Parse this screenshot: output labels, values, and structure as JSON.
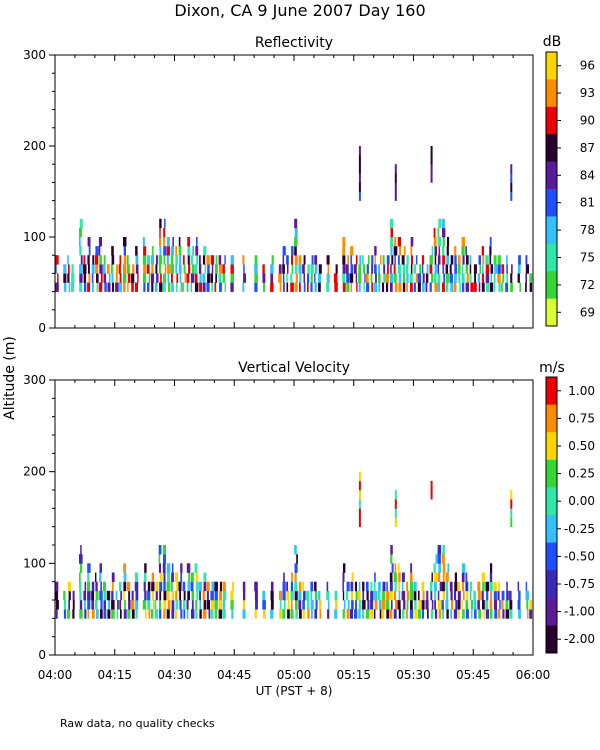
{
  "title": "Dixon, CA   9 June 2007   Day 160",
  "ylabel": "Altitude (m)",
  "xlabel": "UT  (PST + 8)",
  "footnote": "Raw data, no quality checks",
  "x_ticks": [
    "04:00",
    "04:15",
    "04:30",
    "04:45",
    "05:00",
    "05:15",
    "05:30",
    "05:45",
    "06:00"
  ],
  "y_ticks": [
    "0",
    "100",
    "200",
    "300"
  ],
  "chart_data": [
    {
      "type": "heatmap",
      "title": "Reflectivity",
      "unit": "dB",
      "x_range_minutes_after_0400": [
        0,
        120
      ],
      "ylim": [
        0,
        300
      ],
      "colorbar": {
        "labels": [
          "96",
          "93",
          "90",
          "87",
          "84",
          "81",
          "78",
          "75",
          "72",
          "69"
        ],
        "colors": [
          "#ffd400",
          "#ff8c00",
          "#ee0000",
          "#2a0030",
          "#5a1a9a",
          "#1f4fff",
          "#33c0ff",
          "#2fe8a8",
          "#33d633",
          "#d8ff33"
        ]
      },
      "columns": [
        {
          "t": 0,
          "top": 80
        },
        {
          "t": 2,
          "top": 70
        },
        {
          "t": 3,
          "top": 80
        },
        {
          "t": 4,
          "top": 70
        },
        {
          "t": 6,
          "top": 120
        },
        {
          "t": 7,
          "top": 80
        },
        {
          "t": 8,
          "top": 100
        },
        {
          "t": 9,
          "top": 80
        },
        {
          "t": 10,
          "top": 90
        },
        {
          "t": 11,
          "top": 100
        },
        {
          "t": 12,
          "top": 80
        },
        {
          "t": 13,
          "top": 70
        },
        {
          "t": 14,
          "top": 90
        },
        {
          "t": 15,
          "top": 70
        },
        {
          "t": 16,
          "top": 80
        },
        {
          "t": 17,
          "top": 100
        },
        {
          "t": 18,
          "top": 80
        },
        {
          "t": 19,
          "top": 70
        },
        {
          "t": 20,
          "top": 90
        },
        {
          "t": 22,
          "top": 100
        },
        {
          "t": 23,
          "top": 80
        },
        {
          "t": 24,
          "top": 90
        },
        {
          "t": 25,
          "top": 80
        },
        {
          "t": 26,
          "top": 120
        },
        {
          "t": 27,
          "top": 120
        },
        {
          "t": 28,
          "top": 100
        },
        {
          "t": 29,
          "top": 100
        },
        {
          "t": 30,
          "top": 90
        },
        {
          "t": 31,
          "top": 100
        },
        {
          "t": 32,
          "top": 80
        },
        {
          "t": 33,
          "top": 100
        },
        {
          "t": 34,
          "top": 90
        },
        {
          "t": 35,
          "top": 100
        },
        {
          "t": 36,
          "top": 80
        },
        {
          "t": 37,
          "top": 90
        },
        {
          "t": 38,
          "top": 80
        },
        {
          "t": 39,
          "top": 80
        },
        {
          "t": 40,
          "top": 80
        },
        {
          "t": 41,
          "top": 80
        },
        {
          "t": 42,
          "top": 80
        },
        {
          "t": 44,
          "top": 80
        },
        {
          "t": 47,
          "top": 80
        },
        {
          "t": 50,
          "top": 80
        },
        {
          "t": 52,
          "top": 70
        },
        {
          "t": 54,
          "top": 80
        },
        {
          "t": 56,
          "top": 70
        },
        {
          "t": 57,
          "top": 90
        },
        {
          "t": 58,
          "top": 80
        },
        {
          "t": 59,
          "top": 90
        },
        {
          "t": 60,
          "top": 120
        },
        {
          "t": 61,
          "top": 80
        },
        {
          "t": 62,
          "top": 80
        },
        {
          "t": 63,
          "top": 70
        },
        {
          "t": 64,
          "top": 80
        },
        {
          "t": 65,
          "top": 80
        },
        {
          "t": 66,
          "top": 70
        },
        {
          "t": 68,
          "top": 80
        },
        {
          "t": 70,
          "top": 70
        },
        {
          "t": 72,
          "top": 100
        },
        {
          "t": 73,
          "top": 80
        },
        {
          "t": 74,
          "top": 90
        },
        {
          "t": 75,
          "top": 80
        },
        {
          "t": 76,
          "top": 80
        },
        {
          "t": 77,
          "top": 80
        },
        {
          "t": 78,
          "top": 80
        },
        {
          "t": 79,
          "top": 80
        },
        {
          "t": 80,
          "top": 90
        },
        {
          "t": 81,
          "top": 80
        },
        {
          "t": 82,
          "top": 80
        },
        {
          "t": 83,
          "top": 80
        },
        {
          "t": 84,
          "top": 120
        },
        {
          "t": 85,
          "top": 100
        },
        {
          "t": 86,
          "top": 100
        },
        {
          "t": 87,
          "top": 90
        },
        {
          "t": 88,
          "top": 80
        },
        {
          "t": 89,
          "top": 100
        },
        {
          "t": 90,
          "top": 80
        },
        {
          "t": 91,
          "top": 70
        },
        {
          "t": 92,
          "top": 80
        },
        {
          "t": 93,
          "top": 70
        },
        {
          "t": 94,
          "top": 90
        },
        {
          "t": 95,
          "top": 110
        },
        {
          "t": 96,
          "top": 120
        },
        {
          "t": 97,
          "top": 120
        },
        {
          "t": 98,
          "top": 100
        },
        {
          "t": 99,
          "top": 80
        },
        {
          "t": 100,
          "top": 90
        },
        {
          "t": 101,
          "top": 80
        },
        {
          "t": 102,
          "top": 100
        },
        {
          "t": 103,
          "top": 90
        },
        {
          "t": 104,
          "top": 80
        },
        {
          "t": 105,
          "top": 70
        },
        {
          "t": 106,
          "top": 80
        },
        {
          "t": 107,
          "top": 90
        },
        {
          "t": 108,
          "top": 80
        },
        {
          "t": 109,
          "top": 100
        },
        {
          "t": 110,
          "top": 80
        },
        {
          "t": 111,
          "top": 80
        },
        {
          "t": 112,
          "top": 70
        },
        {
          "t": 113,
          "top": 80
        },
        {
          "t": 114,
          "top": 70
        },
        {
          "t": 116,
          "top": 80
        },
        {
          "t": 118,
          "top": 80
        },
        {
          "t": 119,
          "top": 60
        }
      ],
      "elevated_returns": [
        {
          "t": 76,
          "bottom": 140,
          "top": 200
        },
        {
          "t": 85,
          "bottom": 140,
          "top": 180
        },
        {
          "t": 94,
          "bottom": 160,
          "top": 200
        },
        {
          "t": 114,
          "bottom": 140,
          "top": 180
        }
      ]
    },
    {
      "type": "heatmap",
      "title": "Vertical Velocity",
      "unit": "m/s",
      "x_range_minutes_after_0400": [
        0,
        120
      ],
      "ylim": [
        0,
        300
      ],
      "colorbar": {
        "labels": [
          "1.00",
          "0.75",
          "0.50",
          "0.25",
          "0.00",
          "-0.25",
          "-0.50",
          "-0.75",
          "-1.00",
          "-2.00"
        ],
        "colors": [
          "#ee0000",
          "#ff8c00",
          "#ffd400",
          "#33d633",
          "#2fe8a8",
          "#33c0ff",
          "#1f4fff",
          "#3a2ab8",
          "#5a1a9a",
          "#2a0030"
        ]
      },
      "columns": [
        {
          "t": 0,
          "top": 80
        },
        {
          "t": 2,
          "top": 70
        },
        {
          "t": 3,
          "top": 80
        },
        {
          "t": 4,
          "top": 70
        },
        {
          "t": 6,
          "top": 120
        },
        {
          "t": 7,
          "top": 80
        },
        {
          "t": 8,
          "top": 100
        },
        {
          "t": 9,
          "top": 80
        },
        {
          "t": 10,
          "top": 90
        },
        {
          "t": 11,
          "top": 100
        },
        {
          "t": 12,
          "top": 80
        },
        {
          "t": 13,
          "top": 70
        },
        {
          "t": 14,
          "top": 90
        },
        {
          "t": 15,
          "top": 70
        },
        {
          "t": 16,
          "top": 80
        },
        {
          "t": 17,
          "top": 100
        },
        {
          "t": 18,
          "top": 80
        },
        {
          "t": 19,
          "top": 70
        },
        {
          "t": 20,
          "top": 90
        },
        {
          "t": 22,
          "top": 100
        },
        {
          "t": 23,
          "top": 80
        },
        {
          "t": 24,
          "top": 90
        },
        {
          "t": 25,
          "top": 80
        },
        {
          "t": 26,
          "top": 120
        },
        {
          "t": 27,
          "top": 120
        },
        {
          "t": 28,
          "top": 100
        },
        {
          "t": 29,
          "top": 100
        },
        {
          "t": 30,
          "top": 90
        },
        {
          "t": 31,
          "top": 100
        },
        {
          "t": 32,
          "top": 80
        },
        {
          "t": 33,
          "top": 100
        },
        {
          "t": 34,
          "top": 90
        },
        {
          "t": 35,
          "top": 100
        },
        {
          "t": 36,
          "top": 80
        },
        {
          "t": 37,
          "top": 90
        },
        {
          "t": 38,
          "top": 80
        },
        {
          "t": 39,
          "top": 80
        },
        {
          "t": 40,
          "top": 80
        },
        {
          "t": 41,
          "top": 80
        },
        {
          "t": 42,
          "top": 80
        },
        {
          "t": 44,
          "top": 80
        },
        {
          "t": 47,
          "top": 80
        },
        {
          "t": 50,
          "top": 80
        },
        {
          "t": 52,
          "top": 70
        },
        {
          "t": 54,
          "top": 80
        },
        {
          "t": 56,
          "top": 70
        },
        {
          "t": 57,
          "top": 90
        },
        {
          "t": 58,
          "top": 80
        },
        {
          "t": 59,
          "top": 90
        },
        {
          "t": 60,
          "top": 120
        },
        {
          "t": 61,
          "top": 80
        },
        {
          "t": 62,
          "top": 80
        },
        {
          "t": 63,
          "top": 70
        },
        {
          "t": 64,
          "top": 80
        },
        {
          "t": 65,
          "top": 80
        },
        {
          "t": 66,
          "top": 70
        },
        {
          "t": 68,
          "top": 80
        },
        {
          "t": 70,
          "top": 70
        },
        {
          "t": 72,
          "top": 100
        },
        {
          "t": 73,
          "top": 80
        },
        {
          "t": 74,
          "top": 90
        },
        {
          "t": 75,
          "top": 80
        },
        {
          "t": 76,
          "top": 80
        },
        {
          "t": 77,
          "top": 80
        },
        {
          "t": 78,
          "top": 80
        },
        {
          "t": 79,
          "top": 80
        },
        {
          "t": 80,
          "top": 90
        },
        {
          "t": 81,
          "top": 80
        },
        {
          "t": 82,
          "top": 80
        },
        {
          "t": 83,
          "top": 80
        },
        {
          "t": 84,
          "top": 120
        },
        {
          "t": 85,
          "top": 100
        },
        {
          "t": 86,
          "top": 100
        },
        {
          "t": 87,
          "top": 90
        },
        {
          "t": 88,
          "top": 80
        },
        {
          "t": 89,
          "top": 100
        },
        {
          "t": 90,
          "top": 80
        },
        {
          "t": 91,
          "top": 70
        },
        {
          "t": 92,
          "top": 80
        },
        {
          "t": 93,
          "top": 70
        },
        {
          "t": 94,
          "top": 90
        },
        {
          "t": 95,
          "top": 110
        },
        {
          "t": 96,
          "top": 120
        },
        {
          "t": 97,
          "top": 120
        },
        {
          "t": 98,
          "top": 100
        },
        {
          "t": 99,
          "top": 80
        },
        {
          "t": 100,
          "top": 90
        },
        {
          "t": 101,
          "top": 80
        },
        {
          "t": 102,
          "top": 100
        },
        {
          "t": 103,
          "top": 90
        },
        {
          "t": 104,
          "top": 80
        },
        {
          "t": 105,
          "top": 70
        },
        {
          "t": 106,
          "top": 80
        },
        {
          "t": 107,
          "top": 90
        },
        {
          "t": 108,
          "top": 80
        },
        {
          "t": 109,
          "top": 100
        },
        {
          "t": 110,
          "top": 80
        },
        {
          "t": 111,
          "top": 80
        },
        {
          "t": 112,
          "top": 70
        },
        {
          "t": 113,
          "top": 80
        },
        {
          "t": 114,
          "top": 70
        },
        {
          "t": 116,
          "top": 80
        },
        {
          "t": 118,
          "top": 80
        },
        {
          "t": 119,
          "top": 60
        }
      ],
      "elevated_returns": [
        {
          "t": 76,
          "bottom": 140,
          "top": 200
        },
        {
          "t": 85,
          "bottom": 140,
          "top": 180
        },
        {
          "t": 94,
          "bottom": 170,
          "top": 190
        },
        {
          "t": 114,
          "bottom": 140,
          "top": 180
        }
      ]
    }
  ]
}
